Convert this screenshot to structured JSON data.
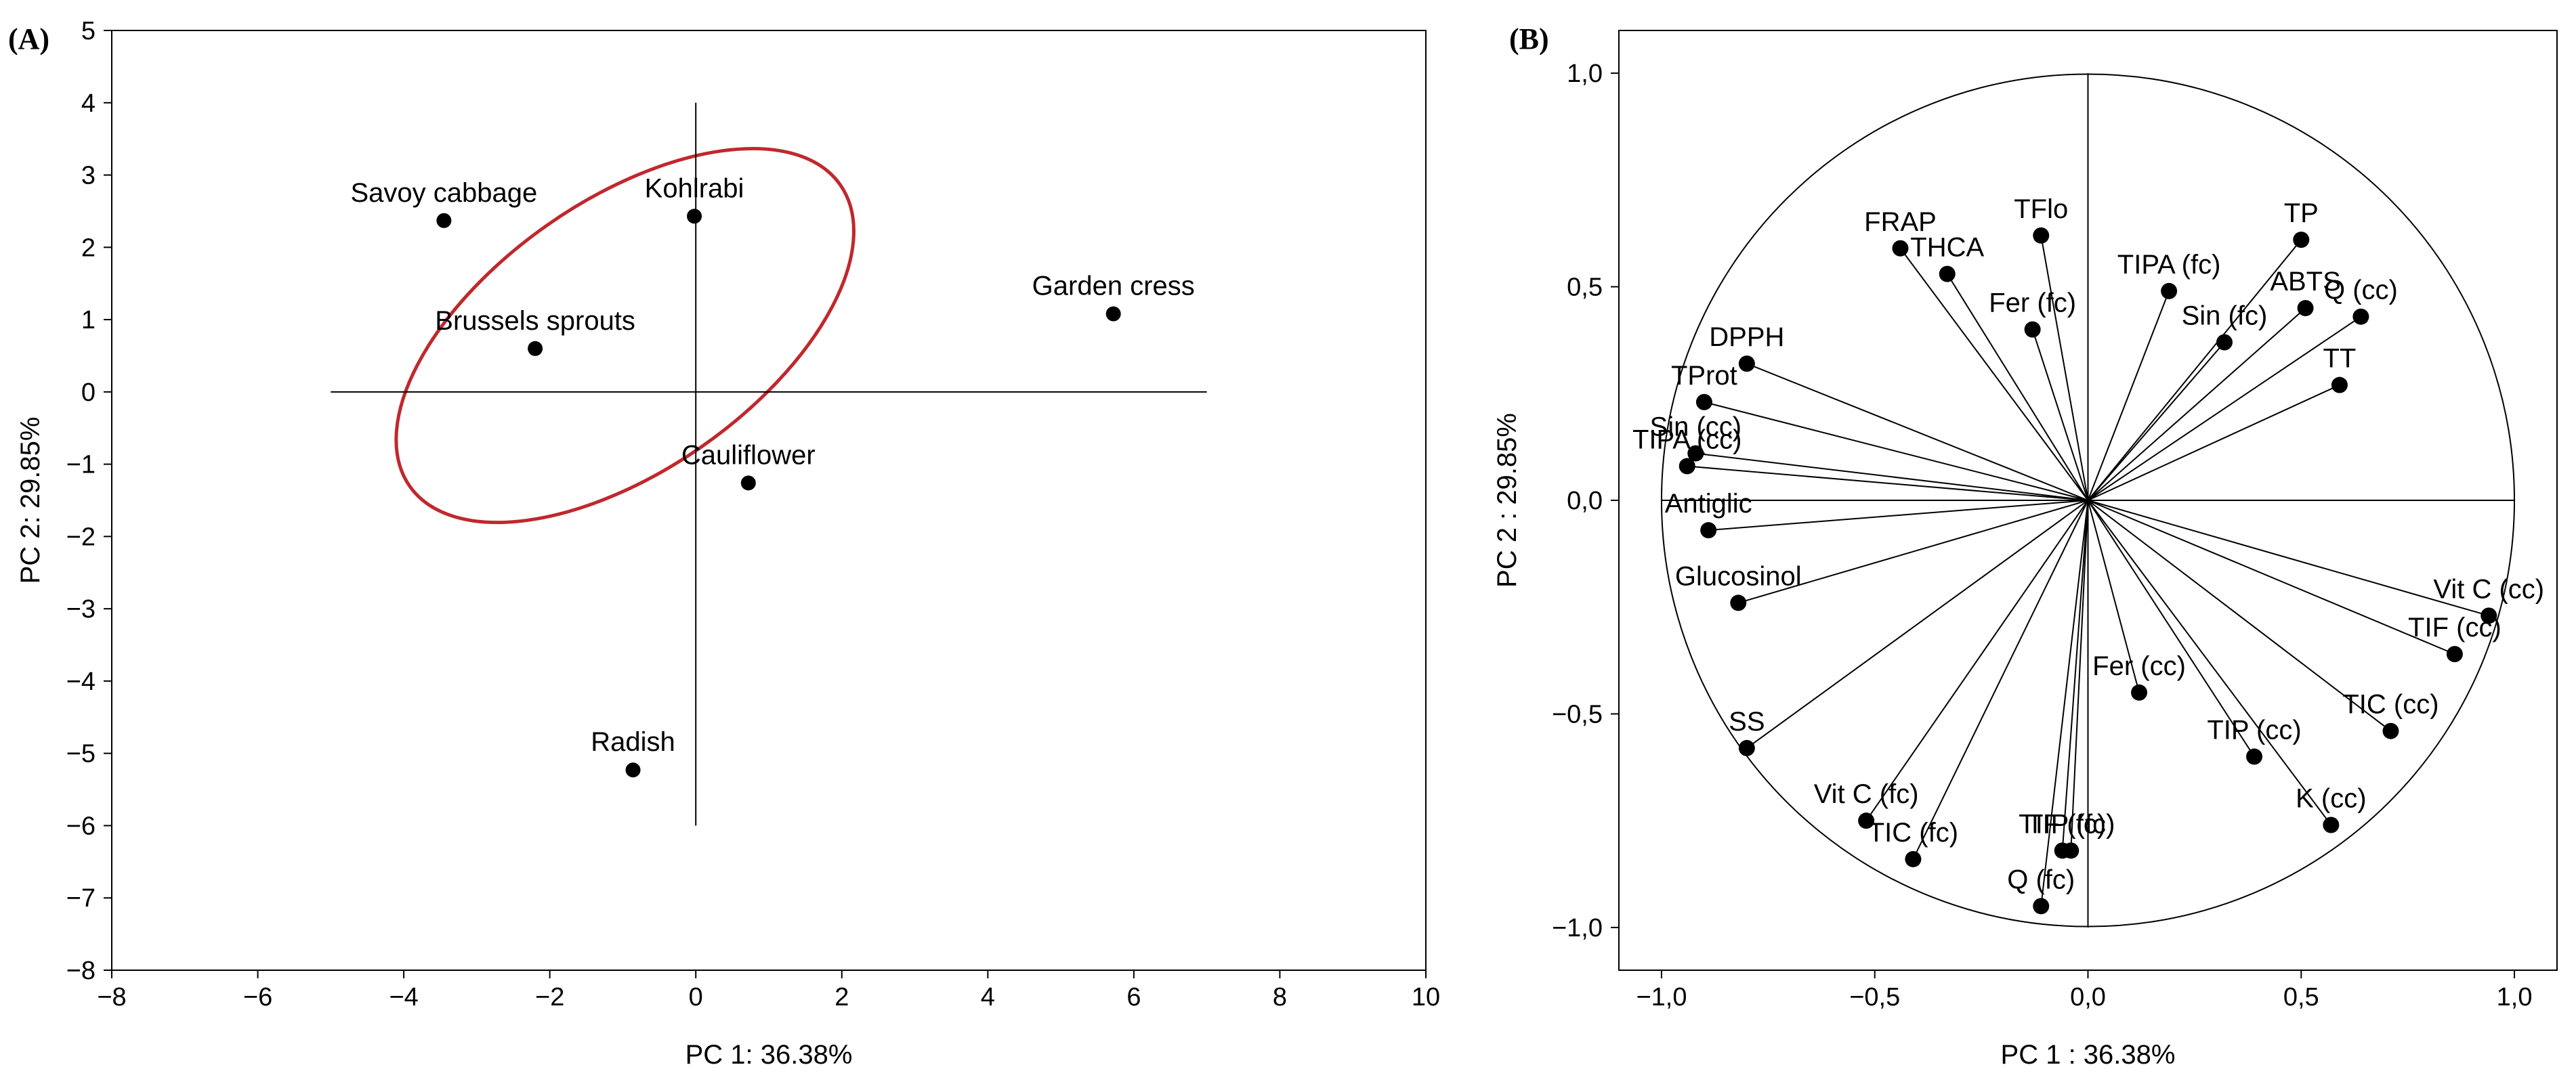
{
  "chart_data": [
    {
      "panel": "(A)",
      "type": "scatter",
      "title": "",
      "xlabel": "PC 1: 36.38%",
      "ylabel": "PC 2: 29.85%",
      "xlim": [
        -8,
        10
      ],
      "ylim": [
        -8,
        5
      ],
      "xticks": [
        -8,
        -6,
        -4,
        -2,
        0,
        2,
        4,
        6,
        8,
        10
      ],
      "yticks": [
        -8,
        -7,
        -6,
        -5,
        -4,
        -3,
        -2,
        -1,
        0,
        1,
        2,
        3,
        4,
        5
      ],
      "x_ticklabels": [
        "−8",
        "−6",
        "−4",
        "−2",
        "0",
        "2",
        "4",
        "6",
        "8",
        "10"
      ],
      "y_ticklabels": [
        "−8",
        "−7",
        "−6",
        "−5",
        "−4",
        "−3",
        "−2",
        "−1",
        "0",
        "1",
        "2",
        "3",
        "4",
        "5"
      ],
      "points": [
        {
          "label": "Savoy cabbage",
          "x": -3.45,
          "y": 2.37
        },
        {
          "label": "Kohlrabi",
          "x": -0.02,
          "y": 2.43
        },
        {
          "label": "Brussels sprouts",
          "x": -2.2,
          "y": 0.6
        },
        {
          "label": "Garden cress",
          "x": 5.72,
          "y": 1.08
        },
        {
          "label": "Cauliflower",
          "x": 0.72,
          "y": -1.26
        },
        {
          "label": "Radish",
          "x": -0.86,
          "y": -5.23
        }
      ],
      "ref_lines": {
        "horizontal": {
          "y": 0,
          "x_from": -5,
          "x_to": 7
        },
        "vertical": {
          "x": 0,
          "y_from": -6,
          "y_to": 4
        }
      },
      "annotations": [
        {
          "type": "ellipse",
          "color": "#c0282d",
          "cx": -0.97,
          "cy": 0.78,
          "rx": 3.6,
          "ry": 1.85,
          "angle_deg": -35
        }
      ]
    },
    {
      "panel": "(B)",
      "type": "scatter",
      "subtype": "loading-plot",
      "title": "",
      "xlabel": "PC 1 : 36.38%",
      "ylabel": "PC 2 : 29.85%",
      "xlim": [
        -1.1,
        1.1
      ],
      "ylim": [
        -1.1,
        1.1
      ],
      "xticks": [
        -1.0,
        -0.5,
        0.0,
        0.5,
        1.0
      ],
      "yticks": [
        -1.0,
        -0.5,
        0.0,
        0.5,
        1.0
      ],
      "x_ticklabels": [
        "−1,0",
        "−0,5",
        "0,0",
        "0,5",
        "1,0"
      ],
      "y_ticklabels": [
        "−1,0",
        "−0,5",
        "0,0",
        "0,5",
        "1,0"
      ],
      "circle_radius": 1.0,
      "vectors": [
        {
          "label": "TP",
          "x": 0.5,
          "y": 0.61
        },
        {
          "label": "TFlo",
          "x": -0.11,
          "y": 0.62
        },
        {
          "label": "FRAP",
          "x": -0.44,
          "y": 0.59
        },
        {
          "label": "THCA",
          "x": -0.33,
          "y": 0.53
        },
        {
          "label": "TIPA (fc)",
          "x": 0.19,
          "y": 0.49
        },
        {
          "label": "ABTS",
          "x": 0.51,
          "y": 0.45
        },
        {
          "label": "Q (cc)",
          "x": 0.64,
          "y": 0.43
        },
        {
          "label": "Fer (fc)",
          "x": -0.13,
          "y": 0.4
        },
        {
          "label": "Sin (fc)",
          "x": 0.32,
          "y": 0.37
        },
        {
          "label": "DPPH",
          "x": -0.8,
          "y": 0.32
        },
        {
          "label": "TT",
          "x": 0.59,
          "y": 0.27
        },
        {
          "label": "TProt",
          "x": -0.9,
          "y": 0.23
        },
        {
          "label": "Sin (cc)",
          "x": -0.92,
          "y": 0.11
        },
        {
          "label": "TIPA (cc)",
          "x": -0.94,
          "y": 0.08
        },
        {
          "label": "Antiglic",
          "x": -0.89,
          "y": -0.07
        },
        {
          "label": "Glucosinol",
          "x": -0.82,
          "y": -0.24
        },
        {
          "label": "Vit C (cc)",
          "x": 0.94,
          "y": -0.27
        },
        {
          "label": "TIF (cc)",
          "x": 0.86,
          "y": -0.36
        },
        {
          "label": "Fer (cc)",
          "x": 0.12,
          "y": -0.45
        },
        {
          "label": "TIC (cc)",
          "x": 0.71,
          "y": -0.54
        },
        {
          "label": "TIP (cc)",
          "x": 0.39,
          "y": -0.6
        },
        {
          "label": "SS",
          "x": -0.8,
          "y": -0.58
        },
        {
          "label": "K (cc)",
          "x": 0.57,
          "y": -0.76
        },
        {
          "label": "Vit C (fc)",
          "x": -0.52,
          "y": -0.75
        },
        {
          "label": "TIC (fc)",
          "x": -0.41,
          "y": -0.84
        },
        {
          "label": "TIP (fc)",
          "x": -0.04,
          "y": -0.82
        },
        {
          "label": "TIF (fc)",
          "x": -0.06,
          "y": -0.82
        },
        {
          "label": "Q (fc)",
          "x": -0.11,
          "y": -0.95
        }
      ]
    }
  ]
}
